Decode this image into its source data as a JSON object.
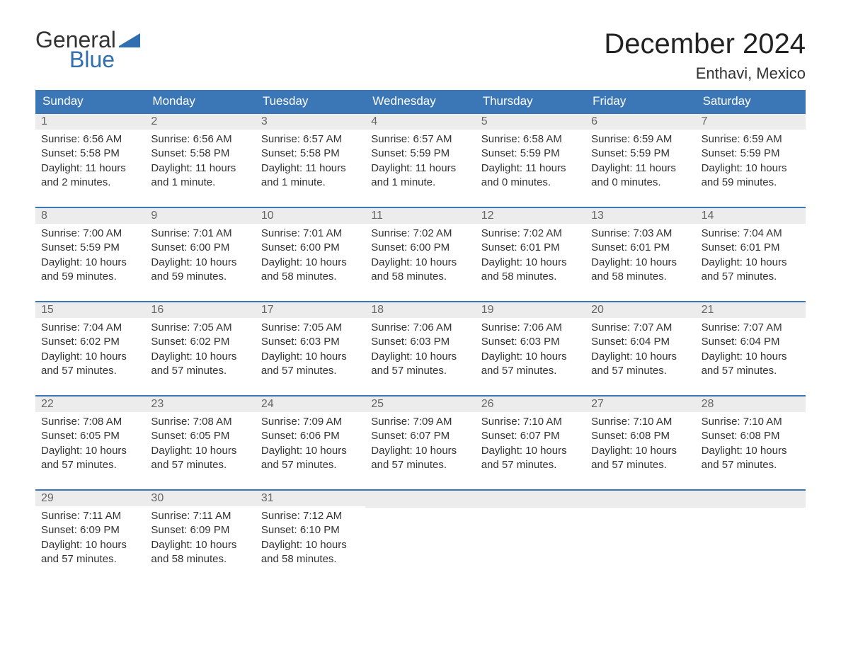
{
  "logo": {
    "text1": "General",
    "text2": "Blue",
    "flag_color": "#2f6eaf"
  },
  "title": "December 2024",
  "location": "Enthavi, Mexico",
  "colors": {
    "header_bg": "#3b77b7",
    "header_text": "#ffffff",
    "daynum_bg": "#ececec",
    "daynum_text": "#666666",
    "body_text": "#333333",
    "row_border": "#3b77b7",
    "background": "#ffffff"
  },
  "layout": {
    "columns": 7,
    "header_fontsize": 17,
    "daynum_fontsize": 16,
    "content_fontsize": 15,
    "title_fontsize": 40,
    "location_fontsize": 22
  },
  "weekdays": [
    "Sunday",
    "Monday",
    "Tuesday",
    "Wednesday",
    "Thursday",
    "Friday",
    "Saturday"
  ],
  "weeks": [
    [
      {
        "n": "1",
        "sr": "Sunrise: 6:56 AM",
        "ss": "Sunset: 5:58 PM",
        "d1": "Daylight: 11 hours",
        "d2": "and 2 minutes."
      },
      {
        "n": "2",
        "sr": "Sunrise: 6:56 AM",
        "ss": "Sunset: 5:58 PM",
        "d1": "Daylight: 11 hours",
        "d2": "and 1 minute."
      },
      {
        "n": "3",
        "sr": "Sunrise: 6:57 AM",
        "ss": "Sunset: 5:58 PM",
        "d1": "Daylight: 11 hours",
        "d2": "and 1 minute."
      },
      {
        "n": "4",
        "sr": "Sunrise: 6:57 AM",
        "ss": "Sunset: 5:59 PM",
        "d1": "Daylight: 11 hours",
        "d2": "and 1 minute."
      },
      {
        "n": "5",
        "sr": "Sunrise: 6:58 AM",
        "ss": "Sunset: 5:59 PM",
        "d1": "Daylight: 11 hours",
        "d2": "and 0 minutes."
      },
      {
        "n": "6",
        "sr": "Sunrise: 6:59 AM",
        "ss": "Sunset: 5:59 PM",
        "d1": "Daylight: 11 hours",
        "d2": "and 0 minutes."
      },
      {
        "n": "7",
        "sr": "Sunrise: 6:59 AM",
        "ss": "Sunset: 5:59 PM",
        "d1": "Daylight: 10 hours",
        "d2": "and 59 minutes."
      }
    ],
    [
      {
        "n": "8",
        "sr": "Sunrise: 7:00 AM",
        "ss": "Sunset: 5:59 PM",
        "d1": "Daylight: 10 hours",
        "d2": "and 59 minutes."
      },
      {
        "n": "9",
        "sr": "Sunrise: 7:01 AM",
        "ss": "Sunset: 6:00 PM",
        "d1": "Daylight: 10 hours",
        "d2": "and 59 minutes."
      },
      {
        "n": "10",
        "sr": "Sunrise: 7:01 AM",
        "ss": "Sunset: 6:00 PM",
        "d1": "Daylight: 10 hours",
        "d2": "and 58 minutes."
      },
      {
        "n": "11",
        "sr": "Sunrise: 7:02 AM",
        "ss": "Sunset: 6:00 PM",
        "d1": "Daylight: 10 hours",
        "d2": "and 58 minutes."
      },
      {
        "n": "12",
        "sr": "Sunrise: 7:02 AM",
        "ss": "Sunset: 6:01 PM",
        "d1": "Daylight: 10 hours",
        "d2": "and 58 minutes."
      },
      {
        "n": "13",
        "sr": "Sunrise: 7:03 AM",
        "ss": "Sunset: 6:01 PM",
        "d1": "Daylight: 10 hours",
        "d2": "and 58 minutes."
      },
      {
        "n": "14",
        "sr": "Sunrise: 7:04 AM",
        "ss": "Sunset: 6:01 PM",
        "d1": "Daylight: 10 hours",
        "d2": "and 57 minutes."
      }
    ],
    [
      {
        "n": "15",
        "sr": "Sunrise: 7:04 AM",
        "ss": "Sunset: 6:02 PM",
        "d1": "Daylight: 10 hours",
        "d2": "and 57 minutes."
      },
      {
        "n": "16",
        "sr": "Sunrise: 7:05 AM",
        "ss": "Sunset: 6:02 PM",
        "d1": "Daylight: 10 hours",
        "d2": "and 57 minutes."
      },
      {
        "n": "17",
        "sr": "Sunrise: 7:05 AM",
        "ss": "Sunset: 6:03 PM",
        "d1": "Daylight: 10 hours",
        "d2": "and 57 minutes."
      },
      {
        "n": "18",
        "sr": "Sunrise: 7:06 AM",
        "ss": "Sunset: 6:03 PM",
        "d1": "Daylight: 10 hours",
        "d2": "and 57 minutes."
      },
      {
        "n": "19",
        "sr": "Sunrise: 7:06 AM",
        "ss": "Sunset: 6:03 PM",
        "d1": "Daylight: 10 hours",
        "d2": "and 57 minutes."
      },
      {
        "n": "20",
        "sr": "Sunrise: 7:07 AM",
        "ss": "Sunset: 6:04 PM",
        "d1": "Daylight: 10 hours",
        "d2": "and 57 minutes."
      },
      {
        "n": "21",
        "sr": "Sunrise: 7:07 AM",
        "ss": "Sunset: 6:04 PM",
        "d1": "Daylight: 10 hours",
        "d2": "and 57 minutes."
      }
    ],
    [
      {
        "n": "22",
        "sr": "Sunrise: 7:08 AM",
        "ss": "Sunset: 6:05 PM",
        "d1": "Daylight: 10 hours",
        "d2": "and 57 minutes."
      },
      {
        "n": "23",
        "sr": "Sunrise: 7:08 AM",
        "ss": "Sunset: 6:05 PM",
        "d1": "Daylight: 10 hours",
        "d2": "and 57 minutes."
      },
      {
        "n": "24",
        "sr": "Sunrise: 7:09 AM",
        "ss": "Sunset: 6:06 PM",
        "d1": "Daylight: 10 hours",
        "d2": "and 57 minutes."
      },
      {
        "n": "25",
        "sr": "Sunrise: 7:09 AM",
        "ss": "Sunset: 6:07 PM",
        "d1": "Daylight: 10 hours",
        "d2": "and 57 minutes."
      },
      {
        "n": "26",
        "sr": "Sunrise: 7:10 AM",
        "ss": "Sunset: 6:07 PM",
        "d1": "Daylight: 10 hours",
        "d2": "and 57 minutes."
      },
      {
        "n": "27",
        "sr": "Sunrise: 7:10 AM",
        "ss": "Sunset: 6:08 PM",
        "d1": "Daylight: 10 hours",
        "d2": "and 57 minutes."
      },
      {
        "n": "28",
        "sr": "Sunrise: 7:10 AM",
        "ss": "Sunset: 6:08 PM",
        "d1": "Daylight: 10 hours",
        "d2": "and 57 minutes."
      }
    ],
    [
      {
        "n": "29",
        "sr": "Sunrise: 7:11 AM",
        "ss": "Sunset: 6:09 PM",
        "d1": "Daylight: 10 hours",
        "d2": "and 57 minutes."
      },
      {
        "n": "30",
        "sr": "Sunrise: 7:11 AM",
        "ss": "Sunset: 6:09 PM",
        "d1": "Daylight: 10 hours",
        "d2": "and 58 minutes."
      },
      {
        "n": "31",
        "sr": "Sunrise: 7:12 AM",
        "ss": "Sunset: 6:10 PM",
        "d1": "Daylight: 10 hours",
        "d2": "and 58 minutes."
      },
      null,
      null,
      null,
      null
    ]
  ]
}
